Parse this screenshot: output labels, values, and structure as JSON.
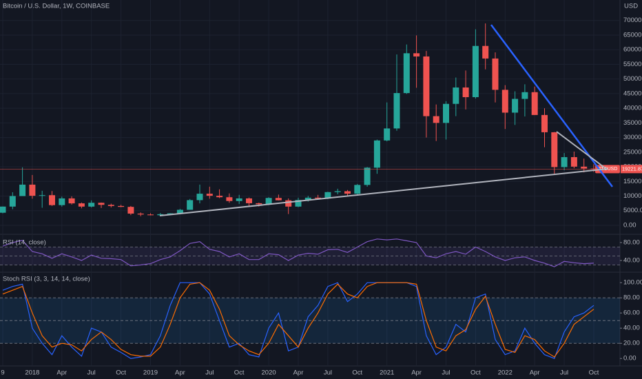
{
  "chart_data": [
    {
      "type": "candlestick",
      "title": "Bitcoin / U.S. Dollar, 1W, COINBASE",
      "y_axis_label": "USD",
      "symbol": "BTCUSD",
      "up_color": "#26a69a",
      "down_color": "#ef5350",
      "grid": true,
      "x": [
        "2017-10",
        "2017-11",
        "2017-12",
        "2018-01",
        "2018-02",
        "2018-03",
        "2018-04",
        "2018-05",
        "2018-06",
        "2018-07",
        "2018-08",
        "2018-09",
        "2018-10",
        "2018-11",
        "2018-12",
        "2019-01",
        "2019-02",
        "2019-03",
        "2019-04",
        "2019-05",
        "2019-06",
        "2019-07",
        "2019-08",
        "2019-09",
        "2019-10",
        "2019-11",
        "2019-12",
        "2020-01",
        "2020-02",
        "2020-03",
        "2020-04",
        "2020-05",
        "2020-06",
        "2020-07",
        "2020-08",
        "2020-09",
        "2020-10",
        "2020-11",
        "2020-12",
        "2021-01",
        "2021-02",
        "2021-03",
        "2021-04",
        "2021-05",
        "2021-06",
        "2021-07",
        "2021-08",
        "2021-09",
        "2021-10",
        "2021-11",
        "2021-12",
        "2022-01",
        "2022-02",
        "2022-03",
        "2022-04",
        "2022-05",
        "2022-06",
        "2022-07",
        "2022-08",
        "2022-09",
        "2022-10"
      ],
      "open": [
        4300,
        6400,
        10000,
        13900,
        10100,
        10300,
        6900,
        9200,
        7500,
        6400,
        7700,
        7000,
        6600,
        6300,
        4000,
        3700,
        3450,
        3800,
        4100,
        5300,
        8600,
        10800,
        10100,
        9600,
        8300,
        9200,
        7550,
        7200,
        9350,
        8550,
        6400,
        8650,
        9450,
        9150,
        11350,
        11650,
        10800,
        13800,
        19700,
        29000,
        33100,
        45200,
        58800,
        57700,
        37300,
        35000,
        41500,
        47100,
        43800,
        61300,
        57000,
        46300,
        38500,
        43200,
        45500,
        37700,
        31800,
        19900,
        23300,
        20050,
        19400
      ],
      "high": [
        6400,
        11300,
        19800,
        17200,
        11800,
        11700,
        9800,
        9900,
        7800,
        8500,
        7800,
        7400,
        7000,
        6600,
        4400,
        4100,
        4200,
        4150,
        5600,
        9000,
        13900,
        13200,
        12300,
        10900,
        10400,
        9500,
        7750,
        9600,
        10500,
        9200,
        9450,
        10050,
        10400,
        11450,
        12500,
        12050,
        14100,
        19900,
        29300,
        42000,
        58400,
        61800,
        64900,
        59600,
        41300,
        42400,
        50500,
        52900,
        67000,
        69000,
        59100,
        47900,
        45800,
        48200,
        47400,
        40000,
        31900,
        24700,
        25200,
        22800,
        20900
      ],
      "low": [
        4100,
        5500,
        10400,
        9100,
        6000,
        6600,
        6400,
        7100,
        5800,
        6100,
        5900,
        6100,
        6200,
        3500,
        3100,
        3400,
        3350,
        3700,
        4050,
        5300,
        7500,
        9100,
        9300,
        7700,
        7300,
        6500,
        6400,
        6900,
        8500,
        3850,
        6200,
        8100,
        8900,
        8950,
        10600,
        9900,
        10400,
        13200,
        17600,
        28700,
        32300,
        44900,
        47000,
        30000,
        28800,
        29300,
        37300,
        39600,
        43300,
        53300,
        42000,
        32900,
        34300,
        37200,
        37700,
        26700,
        17600,
        18800,
        19500,
        18100,
        18200
      ],
      "close": [
        6400,
        10000,
        13900,
        10100,
        10300,
        6900,
        9200,
        7500,
        6400,
        7700,
        7000,
        6600,
        6300,
        4000,
        3700,
        3450,
        3800,
        4100,
        5300,
        8600,
        10800,
        10100,
        9600,
        8300,
        9200,
        7550,
        7200,
        9350,
        8550,
        6400,
        8650,
        9450,
        9150,
        11350,
        11650,
        10800,
        13800,
        19700,
        29000,
        33100,
        45200,
        58800,
        57700,
        37300,
        35000,
        41500,
        47100,
        43800,
        61300,
        57000,
        46300,
        38500,
        43200,
        45500,
        37700,
        31800,
        19900,
        23300,
        20050,
        19400,
        19221.87
      ],
      "ylim": [
        -2600,
        77000
      ],
      "yticks": [
        {
          "value": 0,
          "label": "0.00"
        },
        {
          "value": 5000,
          "label": "5000.00"
        },
        {
          "value": 10000,
          "label": "10000.00"
        },
        {
          "value": 15000,
          "label": "15000.00"
        },
        {
          "value": 20000,
          "label": "20000.00"
        },
        {
          "value": 25000,
          "label": "25000.00"
        },
        {
          "value": 30000,
          "label": "30000.00"
        },
        {
          "value": 35000,
          "label": "35000.00"
        },
        {
          "value": 40000,
          "label": "40000.00"
        },
        {
          "value": 45000,
          "label": "45000.00"
        },
        {
          "value": 50000,
          "label": "50000.00"
        },
        {
          "value": 55000,
          "label": "55000.00"
        },
        {
          "value": 60000,
          "label": "60000.00"
        },
        {
          "value": 65000,
          "label": "65000.00"
        },
        {
          "value": 70000,
          "label": "70000.00"
        }
      ],
      "xticks": [
        {
          "value": "2017-10",
          "label": "9"
        },
        {
          "value": "2018-01",
          "label": "2018"
        },
        {
          "value": "2018-04",
          "label": "Apr"
        },
        {
          "value": "2018-07",
          "label": "Jul"
        },
        {
          "value": "2018-10",
          "label": "Oct"
        },
        {
          "value": "2019-01",
          "label": "2019"
        },
        {
          "value": "2019-04",
          "label": "Apr"
        },
        {
          "value": "2019-07",
          "label": "Jul"
        },
        {
          "value": "2019-10",
          "label": "Oct"
        },
        {
          "value": "2020-01",
          "label": "2020"
        },
        {
          "value": "2020-04",
          "label": "Apr"
        },
        {
          "value": "2020-07",
          "label": "Jul"
        },
        {
          "value": "2020-10",
          "label": "Oct"
        },
        {
          "value": "2021-01",
          "label": "2021"
        },
        {
          "value": "2021-04",
          "label": "Apr"
        },
        {
          "value": "2021-07",
          "label": "Jul"
        },
        {
          "value": "2021-10",
          "label": "Oct"
        },
        {
          "value": "2022-01",
          "label": "2022"
        },
        {
          "value": "2022-04",
          "label": "Apr"
        },
        {
          "value": "2022-07",
          "label": "Jul"
        },
        {
          "value": "2022-10",
          "label": "Oct"
        }
      ]
    },
    {
      "type": "line",
      "title": "RSI (14, close)",
      "band_color": "#7e57c2",
      "series": [
        {
          "color": "#7e57c2",
          "values": [
            72,
            80,
            85,
            60,
            55,
            45,
            55,
            48,
            40,
            52,
            45,
            44,
            42,
            28,
            30,
            33,
            42,
            48,
            62,
            78,
            82,
            65,
            60,
            48,
            55,
            42,
            42,
            55,
            53,
            40,
            52,
            56,
            54,
            64,
            65,
            58,
            70,
            82,
            88,
            86,
            88,
            84,
            80,
            50,
            46,
            55,
            60,
            54,
            70,
            60,
            48,
            40,
            46,
            48,
            40,
            34,
            26,
            38,
            35,
            33,
            34
          ]
        }
      ],
      "ylim": [
        20,
        100
      ],
      "bands": [
        30,
        50,
        70
      ],
      "yticks": [
        {
          "value": 80,
          "label": "80.00"
        },
        {
          "value": 40,
          "label": "40.00"
        }
      ]
    },
    {
      "type": "line",
      "title": "Stoch RSI (3, 3, 14, 14, close)",
      "band_color": "#2196f3",
      "series": [
        {
          "color": "#2962ff",
          "values": [
            90,
            95,
            98,
            40,
            20,
            5,
            30,
            15,
            3,
            40,
            35,
            15,
            8,
            0,
            2,
            5,
            30,
            70,
            100,
            100,
            100,
            85,
            50,
            15,
            20,
            5,
            2,
            40,
            60,
            10,
            15,
            55,
            70,
            95,
            100,
            75,
            85,
            100,
            100,
            100,
            100,
            100,
            95,
            30,
            5,
            15,
            45,
            35,
            80,
            85,
            25,
            5,
            10,
            40,
            20,
            5,
            0,
            35,
            55,
            60,
            70
          ]
        },
        {
          "color": "#ff6d00",
          "values": [
            85,
            90,
            95,
            60,
            30,
            15,
            20,
            18,
            10,
            25,
            35,
            25,
            12,
            5,
            3,
            3,
            15,
            45,
            80,
            98,
            100,
            90,
            65,
            30,
            18,
            10,
            5,
            20,
            45,
            30,
            15,
            40,
            60,
            85,
            98,
            85,
            80,
            95,
            100,
            100,
            100,
            100,
            98,
            50,
            15,
            10,
            30,
            38,
            65,
            82,
            45,
            12,
            8,
            30,
            25,
            10,
            2,
            20,
            45,
            55,
            65
          ]
        }
      ],
      "ylim": [
        -8,
        112
      ],
      "bands": [
        20,
        50,
        80
      ],
      "yticks": [
        {
          "value": 100,
          "label": "100.00"
        },
        {
          "value": 80,
          "label": "80.00"
        },
        {
          "value": 60,
          "label": "60.00"
        },
        {
          "value": 40,
          "label": "40.00"
        },
        {
          "value": 20,
          "label": "20.00"
        },
        {
          "value": 0,
          "label": "0.00"
        }
      ]
    }
  ]
}
